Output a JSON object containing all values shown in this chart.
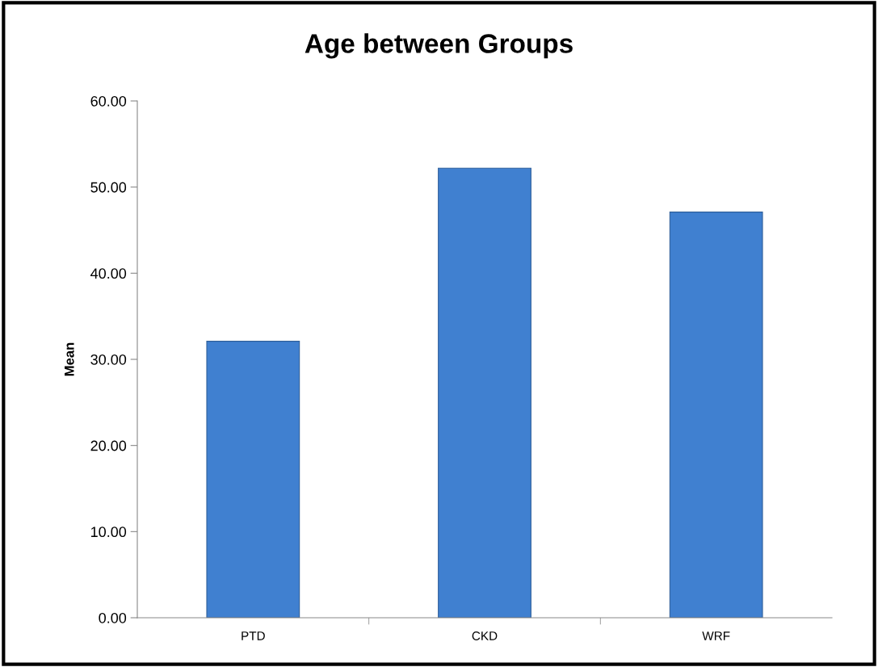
{
  "chart_data": {
    "type": "bar",
    "title": "Age between Groups",
    "ylabel": "Mean",
    "categories": [
      "PTD",
      "CKD",
      "WRF"
    ],
    "values": [
      32.1,
      52.2,
      47.1
    ],
    "color": "#4080d0",
    "ylim": [
      0,
      60
    ],
    "yticks": [
      {
        "value": 0,
        "label": "0.00"
      },
      {
        "value": 10,
        "label": "10.00"
      },
      {
        "value": 20,
        "label": "20.00"
      },
      {
        "value": 30,
        "label": "30.00"
      },
      {
        "value": 40,
        "label": "40.00"
      },
      {
        "value": 50,
        "label": "50.00"
      },
      {
        "value": 60,
        "label": "60.00"
      }
    ],
    "grid": false
  }
}
